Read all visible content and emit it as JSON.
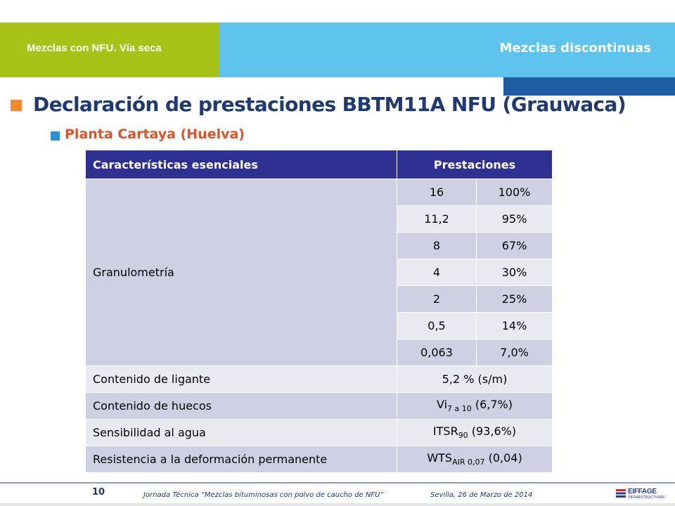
{
  "header": {
    "section_left": "Mezclas con NFU. Vía seca",
    "section_right": "Mezclas discontinuas",
    "colors": {
      "green": "#a9c218",
      "light_blue": "#5ec4ee",
      "navy": "#1f5da3"
    }
  },
  "title": "Declaración de prestaciones BBTM11A NFU (Grauwaca)",
  "subtitle": "Planta Cartaya (Huelva)",
  "table": {
    "headers": [
      "Características esenciales",
      "Prestaciones"
    ],
    "granulometria": {
      "label": "Granulometría",
      "rows": [
        {
          "sieve": "16",
          "pass": "100%"
        },
        {
          "sieve": "11,2",
          "pass": "95%"
        },
        {
          "sieve": "8",
          "pass": "67%"
        },
        {
          "sieve": "4",
          "pass": "30%"
        },
        {
          "sieve": "2",
          "pass": "25%"
        },
        {
          "sieve": "0,5",
          "pass": "14%"
        },
        {
          "sieve": "0,063",
          "pass": "7,0%"
        }
      ]
    },
    "ligante": {
      "label": "Contenido de ligante",
      "value": "5,2 % (s/m)"
    },
    "huecos": {
      "label": "Contenido de huecos",
      "value_main": "Vi",
      "value_sub": "7 a 10",
      "value_rest": " (6,7%)"
    },
    "agua": {
      "label": "Sensibilidad al agua",
      "value_main": "ITSR",
      "value_sub": "90",
      "value_rest": " (93,6%)"
    },
    "deformacion": {
      "label": "Resistencia a la deformación permanente",
      "value_main": "WTS",
      "value_sub": "AIR 0,07",
      "value_rest": " (0,04)"
    }
  },
  "footer": {
    "page_number": "10",
    "event": "Jornada Técnica “Mezclas bituminosas con polvo de caucho de NFU”",
    "date": "Sevilla, 26 de Marzo de 2014",
    "logo": "EIFFAGE",
    "logo_sub": "INFRAESTRUCTURAS"
  }
}
